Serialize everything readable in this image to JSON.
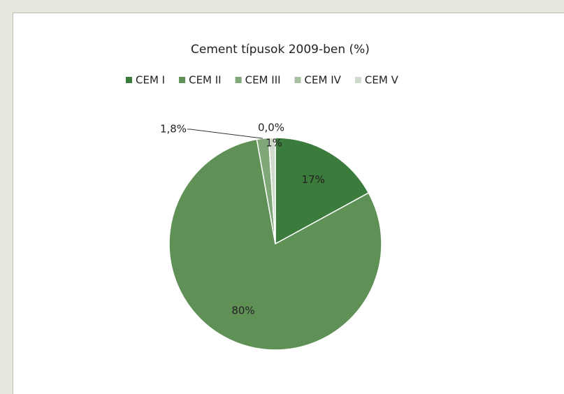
{
  "chart_data": {
    "type": "pie",
    "title": "Cement típusok 2009-ben (%)",
    "categories": [
      "CEM I",
      "CEM II",
      "CEM III",
      "CEM IV",
      "CEM V"
    ],
    "values": [
      17,
      80,
      1.8,
      0,
      1
    ],
    "value_labels": [
      "17%",
      "80%",
      "1,8%",
      "0,0%",
      "1%"
    ],
    "colors": [
      "#3b7b3b",
      "#5f9157",
      "#7fa778",
      "#a8c0a2",
      "#cfdbcb"
    ],
    "legend": "top"
  }
}
